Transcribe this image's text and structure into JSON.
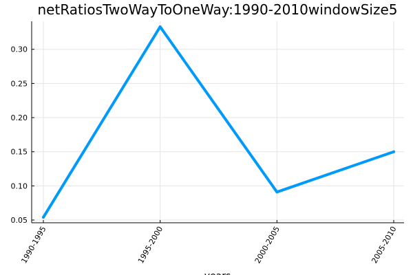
{
  "chart_data": {
    "type": "line",
    "title": "netRatiosTwoWayToOneWay:1990-2010windowSize5",
    "xlabel": "years",
    "ylabel": "",
    "categories": [
      "1990-1995",
      "1995-2000",
      "2000-2005",
      "2005-2010"
    ],
    "series": [
      {
        "values": [
          0.054,
          0.333,
          0.091,
          0.15
        ]
      }
    ],
    "y_ticks": [
      0.05,
      0.1,
      0.15,
      0.2,
      0.25,
      0.3
    ],
    "y_tick_labels": [
      "0.05",
      "0.10",
      "0.15",
      "0.20",
      "0.25",
      "0.30"
    ],
    "ylim": [
      0.046,
      0.341
    ],
    "grid": true,
    "legend": "none",
    "colors": {
      "series": "#009AFA",
      "axis": "#000000",
      "grid": "#e5e5e5"
    }
  }
}
